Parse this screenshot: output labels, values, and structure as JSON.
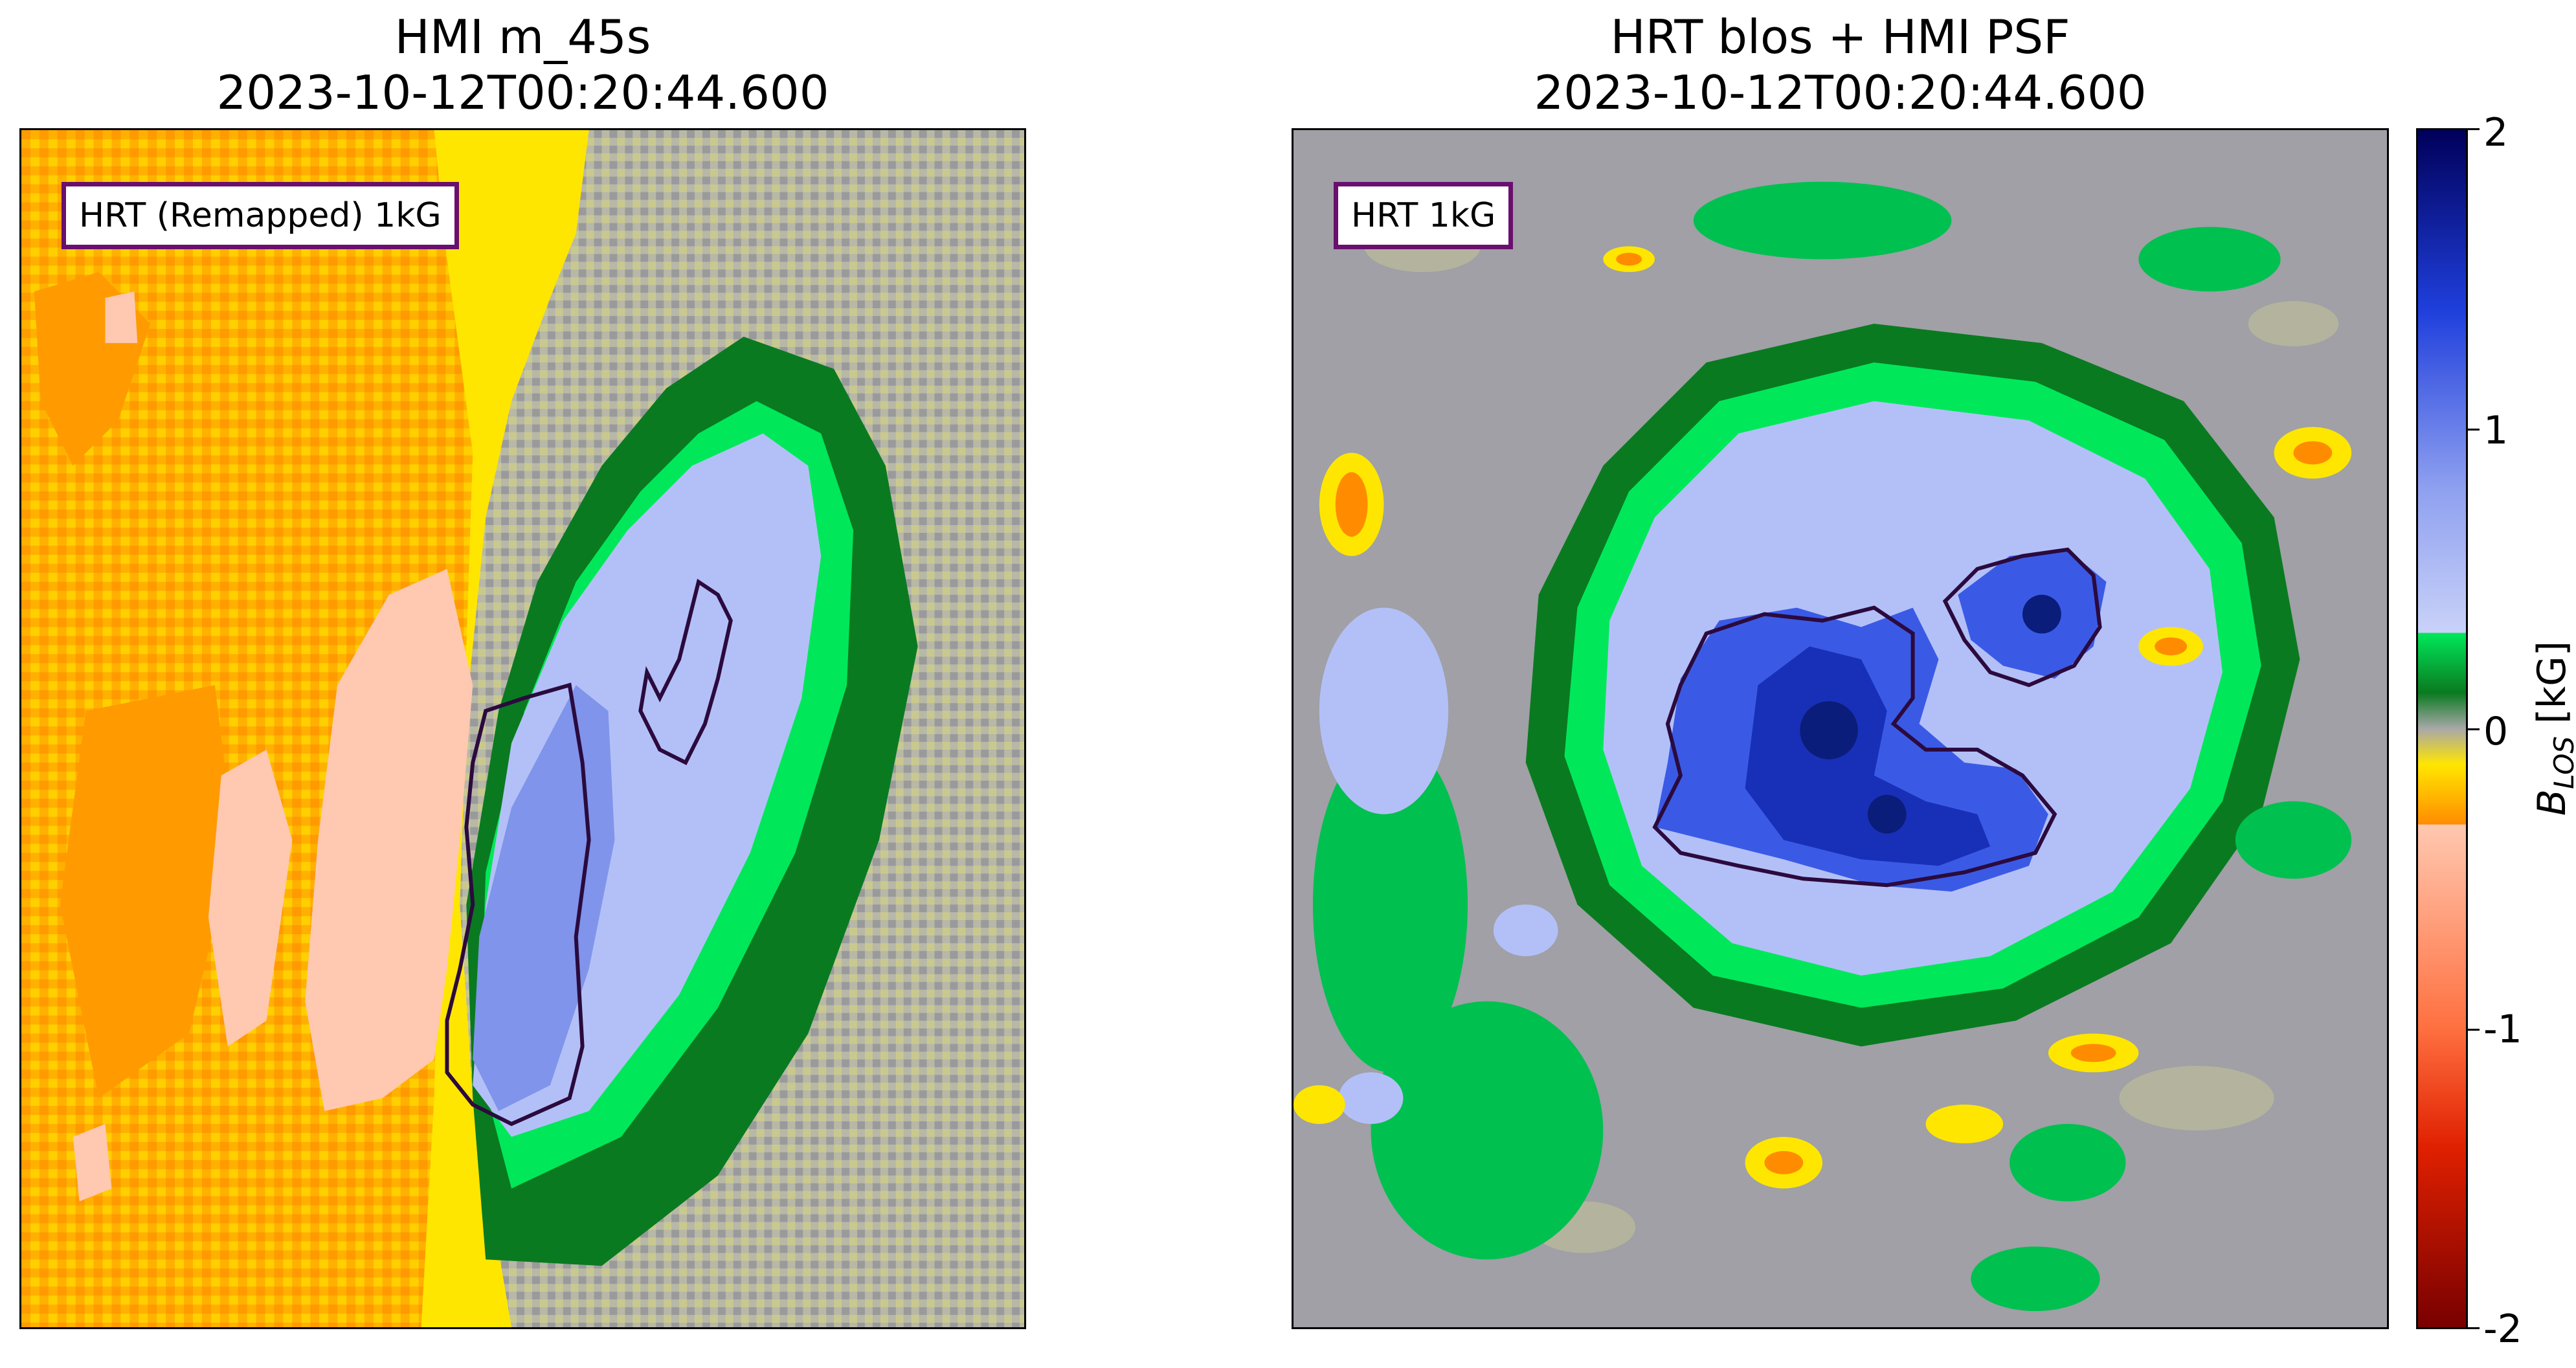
{
  "left_panel": {
    "title_line1": "HMI m_45s",
    "title_line2": "2023-10-12T00:20:44.600",
    "label": "HRT (Remapped) 1kG"
  },
  "right_panel": {
    "title_line1": "HRT blos + HMI PSF",
    "title_line2": "2023-10-12T00:20:44.600",
    "label": "HRT 1kG"
  },
  "colorbar": {
    "label": "B_LOS [kG]",
    "label_main": "B",
    "label_sub": "LOS",
    "label_unit": "[kG]",
    "ticks": [
      "2",
      "1",
      "0",
      "-1",
      "-2"
    ],
    "range": [
      -2,
      2
    ],
    "colors": {
      "strong_positive": "#00005a",
      "positive": "#1f3fdc",
      "weak_positive": "#b3c0f7",
      "green_bright": "#00e85a",
      "green_dark": "#0a7a20",
      "neutral": "#a8a8a8",
      "yellow": "#ffe600",
      "orange": "#ff8c00",
      "pale": "#ffc8b0",
      "red": "#e02000",
      "dark_red": "#780000"
    }
  },
  "contour_color": "#2b0a3d"
}
